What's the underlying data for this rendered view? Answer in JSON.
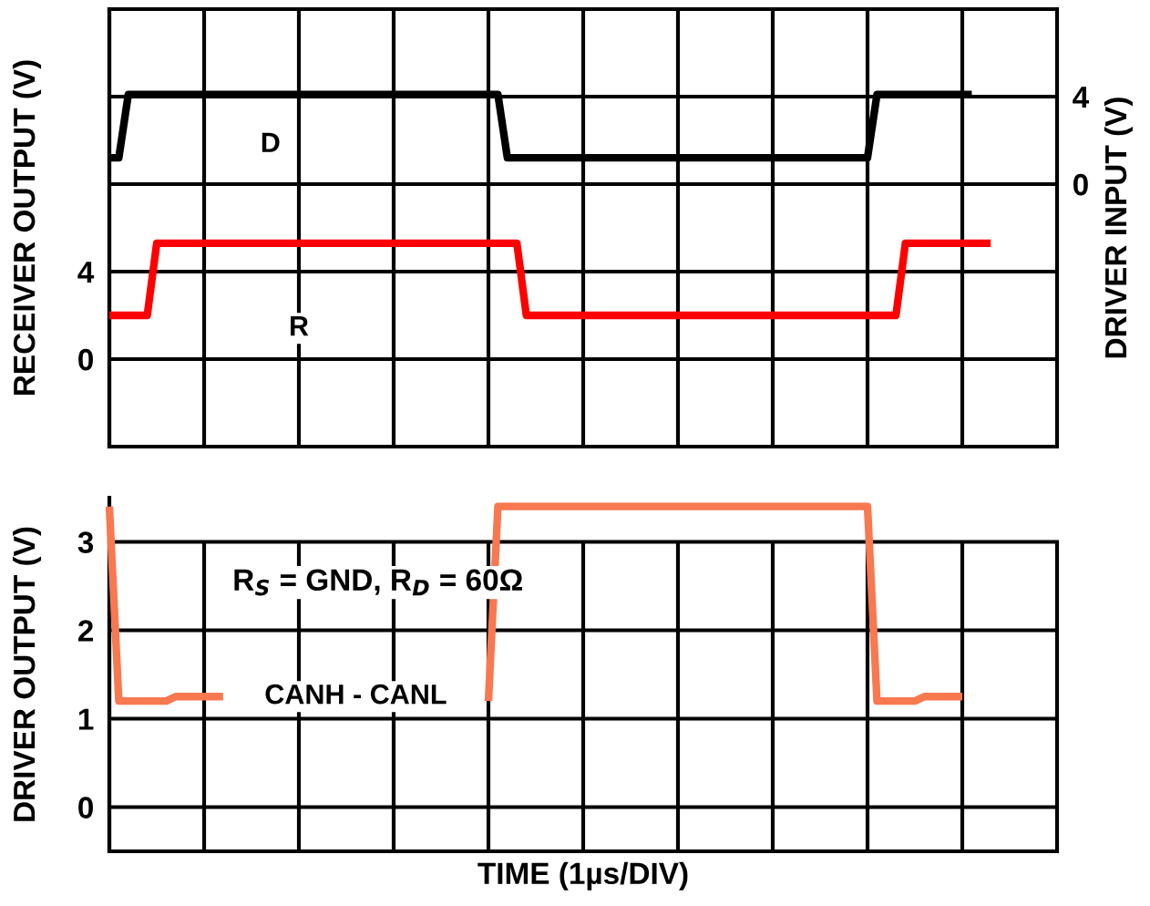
{
  "chart_data": [
    {
      "type": "line",
      "ylabel": "RECEIVER OUTPUT (V)",
      "y2label": "DRIVER INPUT (V)",
      "categories": [
        null,
        null,
        null,
        null,
        null,
        null,
        null,
        null,
        null,
        null,
        null,
        null,
        null,
        null,
        null,
        null,
        null,
        null,
        null,
        null,
        null,
        null,
        null,
        null,
        null,
        null,
        null,
        null,
        null,
        null,
        null,
        null,
        null,
        null,
        null,
        null,
        null,
        null,
        null,
        null,
        null,
        null,
        null,
        null,
        null,
        null,
        null,
        null,
        null,
        null,
        null,
        null,
        null,
        null,
        null,
        null,
        null,
        null,
        null,
        null,
        null,
        null,
        null,
        null,
        null,
        null,
        null,
        null,
        null,
        null,
        null,
        null,
        null,
        null,
        null,
        null,
        null,
        null,
        null,
        null,
        null,
        null,
        null,
        null,
        null,
        null,
        null,
        null,
        null,
        null,
        null,
        null,
        null,
        null,
        null,
        null,
        null,
        null,
        null,
        null,
        null
      ],
      "ylim": [
        -4,
        16
      ],
      "yticks": [
        0,
        4,
        {
          "value": 8,
          "label": null
        },
        {
          "value": 12,
          "label": null
        },
        {
          "value": 16,
          "label": null
        }
      ],
      "y2lim": [
        -12,
        8
      ],
      "y2ticks": [
        0,
        4
      ],
      "grid": true,
      "tick_labels": "y",
      "series": [
        {
          "name": "D",
          "color": "#000000",
          "axis": "y2",
          "values": [
            1.2,
            1.2,
            4.1,
            4.1,
            4.1,
            4.1,
            4.1,
            4.1,
            4.1,
            4.1,
            4.1,
            4.1,
            4.1,
            4.1,
            4.1,
            4.1,
            4.1,
            4.1,
            4.1,
            4.1,
            4.1,
            4.1,
            4.1,
            4.1,
            4.1,
            4.1,
            4.1,
            4.1,
            4.1,
            4.1,
            4.1,
            4.1,
            4.1,
            4.1,
            4.1,
            4.1,
            4.1,
            4.1,
            4.1,
            4.1,
            4.1,
            4.1,
            1.2,
            1.2,
            1.2,
            1.2,
            1.2,
            1.2,
            1.2,
            1.2,
            1.2,
            1.2,
            1.2,
            1.2,
            1.2,
            1.2,
            1.2,
            1.2,
            1.2,
            1.2,
            1.2,
            1.2,
            1.2,
            1.2,
            1.2,
            1.2,
            1.2,
            1.2,
            1.2,
            1.2,
            1.2,
            1.2,
            1.2,
            1.2,
            1.2,
            1.2,
            1.2,
            1.2,
            1.2,
            1.2,
            1.2,
            4.1,
            4.1,
            4.1,
            4.1,
            4.1,
            4.1,
            4.1,
            4.1,
            4.1,
            4.1,
            4.1,
            null,
            null,
            null,
            null,
            null,
            null,
            null,
            null,
            null
          ]
        },
        {
          "name": "R",
          "color": "#ff0000",
          "axis": "y",
          "values": [
            2.0,
            2.0,
            2.0,
            2.0,
            2.0,
            5.3,
            5.3,
            5.3,
            5.3,
            5.3,
            5.3,
            5.3,
            5.3,
            5.3,
            5.3,
            5.3,
            5.3,
            5.3,
            5.3,
            5.3,
            5.3,
            5.3,
            5.3,
            5.3,
            5.3,
            5.3,
            5.3,
            5.3,
            5.3,
            5.3,
            5.3,
            5.3,
            5.3,
            5.3,
            5.3,
            5.3,
            5.3,
            5.3,
            5.3,
            5.3,
            5.3,
            5.3,
            5.3,
            5.3,
            2.0,
            2.0,
            2.0,
            2.0,
            2.0,
            2.0,
            2.0,
            2.0,
            2.0,
            2.0,
            2.0,
            2.0,
            2.0,
            2.0,
            2.0,
            2.0,
            2.0,
            2.0,
            2.0,
            2.0,
            2.0,
            2.0,
            2.0,
            2.0,
            2.0,
            2.0,
            2.0,
            2.0,
            2.0,
            2.0,
            2.0,
            2.0,
            2.0,
            2.0,
            2.0,
            2.0,
            2.0,
            2.0,
            2.0,
            2.0,
            5.3,
            5.3,
            5.3,
            5.3,
            5.3,
            5.3,
            5.3,
            5.3,
            5.3,
            5.3,
            null,
            null,
            null,
            null,
            null,
            null,
            null
          ]
        }
      ]
    },
    {
      "type": "line",
      "ylabel": "DRIVER OUTPUT (V)",
      "xlabel": "TIME (1µs/DIV)",
      "categories": [
        null,
        null,
        null,
        null,
        null,
        null,
        null,
        null,
        null,
        null,
        null,
        null,
        null,
        null,
        null,
        null,
        null,
        null,
        null,
        null,
        null,
        null,
        null,
        null,
        null,
        null,
        null,
        null,
        null,
        null,
        null,
        null,
        null,
        null,
        null,
        null,
        null,
        null,
        null,
        null,
        null,
        null,
        null,
        null,
        null,
        null,
        null,
        null,
        null,
        null,
        null,
        null,
        null,
        null,
        null,
        null,
        null,
        null,
        null,
        null,
        null,
        null,
        null,
        null,
        null,
        null,
        null,
        null,
        null,
        null,
        null,
        null,
        null,
        null,
        null,
        null,
        null,
        null,
        null,
        null,
        null,
        null,
        null,
        null,
        null,
        null,
        null,
        null,
        null,
        null,
        null,
        null,
        null,
        null,
        null,
        null,
        null,
        null,
        null,
        null,
        null
      ],
      "ylim": [
        -0.5,
        3.5
      ],
      "yticks": [
        0,
        1,
        2,
        3
      ],
      "grid": true,
      "tick_labels": "y",
      "annotations": [
        "R$_{S}$ = GND, R$_{D}$ = 60Ω"
      ],
      "series": [
        {
          "name": "CANH - CANL",
          "color": "#f87850",
          "values": [
            3.4,
            1.2,
            1.2,
            1.2,
            1.2,
            1.2,
            1.2,
            1.25,
            1.25,
            1.25,
            1.25,
            1.25,
            1.25,
            null,
            null,
            null,
            null,
            null,
            null,
            null,
            null,
            null,
            null,
            null,
            null,
            null,
            null,
            null,
            null,
            null,
            null,
            null,
            null,
            null,
            null,
            null,
            null,
            null,
            null,
            null,
            1.2,
            3.4,
            3.4,
            3.4,
            3.4,
            3.4,
            3.4,
            3.4,
            3.4,
            3.4,
            3.4,
            3.4,
            3.4,
            3.4,
            3.4,
            3.4,
            3.4,
            3.4,
            3.4,
            3.4,
            3.4,
            3.4,
            3.4,
            3.4,
            3.4,
            3.4,
            3.4,
            3.4,
            3.4,
            3.4,
            3.4,
            3.4,
            3.4,
            3.4,
            3.4,
            3.4,
            3.4,
            3.4,
            3.4,
            3.4,
            3.4,
            1.2,
            1.2,
            1.2,
            1.2,
            1.2,
            1.25,
            1.25,
            1.25,
            1.25,
            1.25,
            null,
            null,
            null,
            null,
            null,
            null,
            null,
            null,
            null,
            null
          ]
        }
      ]
    }
  ]
}
